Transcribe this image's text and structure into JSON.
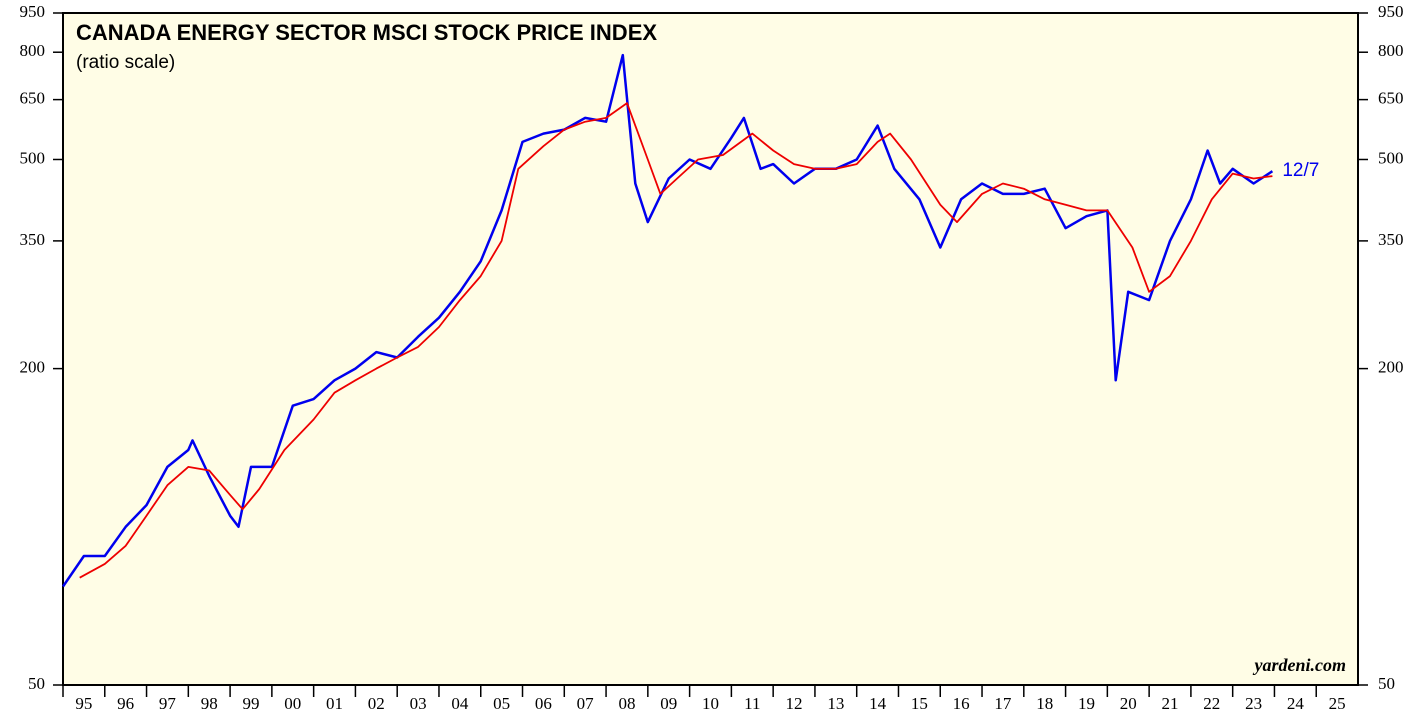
{
  "chart_data": {
    "type": "line",
    "title": "CANADA ENERGY SECTOR MSCI STOCK PRICE INDEX",
    "subtitle": "(ratio scale)",
    "annotation": "12/7",
    "source": "yardeni.com",
    "log_scale": true,
    "ylim": [
      50,
      950
    ],
    "yticks": [
      950,
      800,
      650,
      500,
      350,
      200,
      50
    ],
    "xlim": [
      1995,
      2026
    ],
    "categories": [
      "95",
      "96",
      "97",
      "98",
      "99",
      "00",
      "01",
      "02",
      "03",
      "04",
      "05",
      "06",
      "07",
      "08",
      "09",
      "10",
      "11",
      "12",
      "13",
      "14",
      "15",
      "16",
      "17",
      "18",
      "19",
      "20",
      "21",
      "22",
      "23",
      "24",
      "25"
    ],
    "series": [
      {
        "color": "#0000ee",
        "x": [
          1995.0,
          1995.5,
          1996.0,
          1996.5,
          1997.0,
          1997.5,
          1998.0,
          1998.1,
          1998.5,
          1999.0,
          1999.2,
          1999.5,
          2000.0,
          2000.5,
          2001.0,
          2001.5,
          2002.0,
          2002.5,
          2003.0,
          2003.5,
          2004.0,
          2004.5,
          2005.0,
          2005.5,
          2006.0,
          2006.5,
          2007.0,
          2007.5,
          2008.0,
          2008.4,
          2008.7,
          2009.0,
          2009.5,
          2010.0,
          2010.5,
          2011.0,
          2011.3,
          2011.7,
          2012.0,
          2012.5,
          2013.0,
          2013.5,
          2014.0,
          2014.5,
          2014.9,
          2015.5,
          2016.0,
          2016.5,
          2017.0,
          2017.5,
          2018.0,
          2018.5,
          2019.0,
          2019.5,
          2020.0,
          2020.2,
          2020.5,
          2021.0,
          2021.5,
          2022.0,
          2022.4,
          2022.7,
          2023.0,
          2023.5,
          2023.95
        ],
        "values": [
          77,
          88,
          88,
          100,
          110,
          130,
          140,
          146,
          125,
          105,
          100,
          130,
          130,
          170,
          175,
          190,
          200,
          215,
          210,
          230,
          250,
          280,
          320,
          400,
          540,
          560,
          570,
          600,
          590,
          790,
          450,
          380,
          460,
          500,
          480,
          550,
          600,
          480,
          490,
          450,
          480,
          480,
          500,
          580,
          480,
          420,
          340,
          420,
          450,
          430,
          430,
          440,
          370,
          390,
          400,
          190,
          280,
          270,
          350,
          420,
          520,
          450,
          480,
          450,
          475
        ]
      },
      {
        "color": "#ee0000",
        "x": [
          1995.4,
          1996.0,
          1996.5,
          1997.0,
          1997.5,
          1998.0,
          1998.5,
          1999.0,
          1999.3,
          1999.7,
          2000.3,
          2001.0,
          2001.5,
          2002.0,
          2002.5,
          2003.0,
          2003.5,
          2004.0,
          2004.5,
          2005.0,
          2005.5,
          2005.9,
          2006.5,
          2007.0,
          2007.5,
          2008.0,
          2008.5,
          2009.0,
          2009.3,
          2009.7,
          2010.2,
          2010.8,
          2011.5,
          2012.0,
          2012.5,
          2013.0,
          2013.5,
          2014.0,
          2014.5,
          2014.8,
          2015.3,
          2016.0,
          2016.4,
          2017.0,
          2017.5,
          2018.0,
          2018.5,
          2019.0,
          2019.5,
          2020.0,
          2020.6,
          2021.0,
          2021.5,
          2022.0,
          2022.5,
          2023.0,
          2023.5,
          2023.95
        ],
        "values": [
          80,
          85,
          92,
          105,
          120,
          130,
          128,
          115,
          108,
          118,
          140,
          160,
          180,
          190,
          200,
          210,
          220,
          240,
          270,
          300,
          350,
          480,
          530,
          570,
          590,
          600,
          640,
          500,
          430,
          460,
          500,
          510,
          560,
          520,
          490,
          480,
          480,
          490,
          540,
          560,
          500,
          410,
          380,
          430,
          450,
          440,
          420,
          410,
          400,
          400,
          340,
          280,
          300,
          350,
          420,
          470,
          460,
          465
        ]
      }
    ]
  }
}
